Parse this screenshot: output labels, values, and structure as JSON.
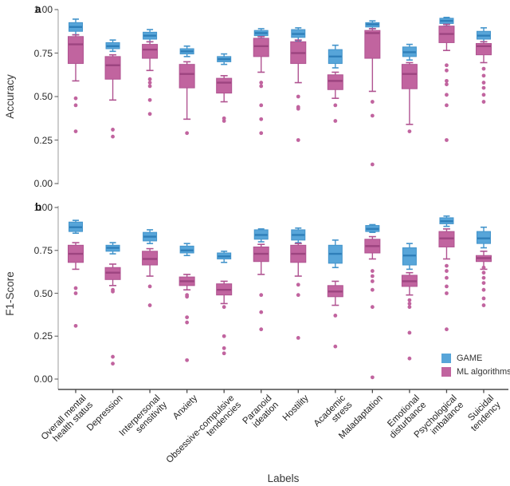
{
  "figure": {
    "xlabel": "Labels",
    "legend": {
      "position": "bottom-right-of-panel-b",
      "items": [
        {
          "label": "GAME",
          "color": "#57a5d9"
        },
        {
          "label": "ML algorithms",
          "color": "#c1649f"
        }
      ]
    }
  },
  "chart_data": [
    {
      "type": "boxplot",
      "panel_label": "a",
      "ylabel": "Accuracy",
      "ylim": [
        0,
        1
      ],
      "yticks": [
        0,
        0.25,
        0.5,
        0.75,
        1
      ],
      "ytick_labels": [
        "0.00",
        "0.25",
        "0.50",
        "0.75",
        "1.00"
      ],
      "categories": [
        "Overall mental\nhealth status",
        "Depression",
        "Interpersonal\nsensitivity",
        "Anxiety",
        "Obsessive-compulsive\ntendencies",
        "Paranoid\nideation",
        "Hostility",
        "Academic\nstress",
        "Maladaptation",
        "Emotional\ndisturbance",
        "Psychological\nimbalance",
        "Suicidal\ntendency"
      ],
      "series": [
        {
          "name": "GAME",
          "color": "#57a5d9",
          "edge": "#4394cb",
          "median_color": "#2f7fb9",
          "boxes": [
            {
              "low": 0.855,
              "q1": 0.875,
              "med": 0.9,
              "q3": 0.925,
              "high": 0.945,
              "outliers": []
            },
            {
              "low": 0.76,
              "q1": 0.775,
              "med": 0.79,
              "q3": 0.81,
              "high": 0.825,
              "outliers": []
            },
            {
              "low": 0.815,
              "q1": 0.83,
              "med": 0.85,
              "q3": 0.87,
              "high": 0.885,
              "outliers": []
            },
            {
              "low": 0.73,
              "q1": 0.745,
              "med": 0.76,
              "q3": 0.775,
              "high": 0.79,
              "outliers": []
            },
            {
              "low": 0.685,
              "q1": 0.7,
              "med": 0.715,
              "q3": 0.73,
              "high": 0.745,
              "outliers": []
            },
            {
              "low": 0.835,
              "q1": 0.85,
              "med": 0.865,
              "q3": 0.88,
              "high": 0.89,
              "outliers": []
            },
            {
              "low": 0.82,
              "q1": 0.84,
              "med": 0.86,
              "q3": 0.885,
              "high": 0.895,
              "outliers": []
            },
            {
              "low": 0.665,
              "q1": 0.69,
              "med": 0.73,
              "q3": 0.77,
              "high": 0.795,
              "outliers": []
            },
            {
              "low": 0.89,
              "q1": 0.9,
              "med": 0.915,
              "q3": 0.925,
              "high": 0.935,
              "outliers": []
            },
            {
              "low": 0.71,
              "q1": 0.73,
              "med": 0.755,
              "q3": 0.785,
              "high": 0.8,
              "outliers": []
            },
            {
              "low": 0.905,
              "q1": 0.92,
              "med": 0.935,
              "q3": 0.95,
              "high": 0.955,
              "outliers": []
            },
            {
              "low": 0.815,
              "q1": 0.83,
              "med": 0.85,
              "q3": 0.875,
              "high": 0.895,
              "outliers": []
            }
          ]
        },
        {
          "name": "ML algorithms",
          "color": "#c1649f",
          "edge": "#b05391",
          "median_color": "#9d4480",
          "boxes": [
            {
              "low": 0.59,
              "q1": 0.69,
              "med": 0.8,
              "q3": 0.845,
              "high": 0.855,
              "outliers": [
                0.49,
                0.45,
                0.3
              ]
            },
            {
              "low": 0.48,
              "q1": 0.6,
              "med": 0.68,
              "q3": 0.73,
              "high": 0.74,
              "outliers": [
                0.31,
                0.27
              ]
            },
            {
              "low": 0.65,
              "q1": 0.72,
              "med": 0.77,
              "q3": 0.8,
              "high": 0.815,
              "outliers": [
                0.6,
                0.58,
                0.56,
                0.48,
                0.4
              ]
            },
            {
              "low": 0.37,
              "q1": 0.55,
              "med": 0.63,
              "q3": 0.685,
              "high": 0.7,
              "outliers": [
                0.29
              ]
            },
            {
              "low": 0.47,
              "q1": 0.52,
              "med": 0.58,
              "q3": 0.605,
              "high": 0.62,
              "outliers": [
                0.375,
                0.36
              ]
            },
            {
              "low": 0.64,
              "q1": 0.73,
              "med": 0.79,
              "q3": 0.835,
              "high": 0.845,
              "outliers": [
                0.58,
                0.56,
                0.45,
                0.37,
                0.29
              ]
            },
            {
              "low": 0.58,
              "q1": 0.69,
              "med": 0.75,
              "q3": 0.815,
              "high": 0.825,
              "outliers": [
                0.5,
                0.44,
                0.43,
                0.25
              ]
            },
            {
              "low": 0.49,
              "q1": 0.54,
              "med": 0.59,
              "q3": 0.625,
              "high": 0.64,
              "outliers": [
                0.45,
                0.36
              ]
            },
            {
              "low": 0.53,
              "q1": 0.72,
              "med": 0.865,
              "q3": 0.88,
              "high": 0.89,
              "outliers": [
                0.47,
                0.39,
                0.11
              ]
            },
            {
              "low": 0.34,
              "q1": 0.545,
              "med": 0.63,
              "q3": 0.685,
              "high": 0.695,
              "outliers": [
                0.3
              ]
            },
            {
              "low": 0.765,
              "q1": 0.81,
              "med": 0.86,
              "q3": 0.905,
              "high": 0.915,
              "outliers": [
                0.68,
                0.65,
                0.59,
                0.57,
                0.51,
                0.45,
                0.25
              ]
            },
            {
              "low": 0.695,
              "q1": 0.74,
              "med": 0.79,
              "q3": 0.805,
              "high": 0.815,
              "outliers": [
                0.66,
                0.62,
                0.58,
                0.55,
                0.51,
                0.47
              ]
            }
          ]
        }
      ]
    },
    {
      "type": "boxplot",
      "panel_label": "b",
      "ylabel": "F1-Score",
      "ylim": [
        0,
        1
      ],
      "yticks": [
        0,
        0.25,
        0.5,
        0.75,
        1
      ],
      "ytick_labels": [
        "0.00",
        "0.25",
        "0.50",
        "0.75",
        "1.00"
      ],
      "categories": [
        "Overall mental\nhealth status",
        "Depression",
        "Interpersonal\nsensitivity",
        "Anxiety",
        "Obsessive-compulsive\ntendencies",
        "Paranoid\nideation",
        "Hostility",
        "Academic\nstress",
        "Maladaptation",
        "Emotional\ndisturbance",
        "Psychological\nimbalance",
        "Suicidal\ntendency"
      ],
      "series": [
        {
          "name": "GAME",
          "color": "#57a5d9",
          "edge": "#4394cb",
          "median_color": "#2f7fb9",
          "boxes": [
            {
              "low": 0.85,
              "q1": 0.86,
              "med": 0.885,
              "q3": 0.915,
              "high": 0.925,
              "outliers": []
            },
            {
              "low": 0.73,
              "q1": 0.745,
              "med": 0.765,
              "q3": 0.78,
              "high": 0.795,
              "outliers": []
            },
            {
              "low": 0.79,
              "q1": 0.805,
              "med": 0.83,
              "q3": 0.855,
              "high": 0.87,
              "outliers": []
            },
            {
              "low": 0.72,
              "q1": 0.735,
              "med": 0.75,
              "q3": 0.775,
              "high": 0.79,
              "outliers": []
            },
            {
              "low": 0.68,
              "q1": 0.7,
              "med": 0.715,
              "q3": 0.735,
              "high": 0.745,
              "outliers": []
            },
            {
              "low": 0.8,
              "q1": 0.815,
              "med": 0.84,
              "q3": 0.87,
              "high": 0.875,
              "outliers": []
            },
            {
              "low": 0.795,
              "q1": 0.81,
              "med": 0.84,
              "q3": 0.87,
              "high": 0.88,
              "outliers": []
            },
            {
              "low": 0.65,
              "q1": 0.675,
              "med": 0.73,
              "q3": 0.78,
              "high": 0.81,
              "outliers": []
            },
            {
              "low": 0.855,
              "q1": 0.86,
              "med": 0.875,
              "q3": 0.895,
              "high": 0.9,
              "outliers": []
            },
            {
              "low": 0.64,
              "q1": 0.665,
              "med": 0.72,
              "q3": 0.765,
              "high": 0.79,
              "outliers": []
            },
            {
              "low": 0.89,
              "q1": 0.905,
              "med": 0.92,
              "q3": 0.94,
              "high": 0.95,
              "outliers": []
            },
            {
              "low": 0.765,
              "q1": 0.79,
              "med": 0.82,
              "q3": 0.86,
              "high": 0.885,
              "outliers": []
            }
          ]
        },
        {
          "name": "ML algorithms",
          "color": "#c1649f",
          "edge": "#b05391",
          "median_color": "#9d4480",
          "boxes": [
            {
              "low": 0.64,
              "q1": 0.68,
              "med": 0.73,
              "q3": 0.78,
              "high": 0.795,
              "outliers": [
                0.53,
                0.5,
                0.31
              ]
            },
            {
              "low": 0.545,
              "q1": 0.58,
              "med": 0.62,
              "q3": 0.65,
              "high": 0.67,
              "outliers": [
                0.52,
                0.51,
                0.13,
                0.09
              ]
            },
            {
              "low": 0.6,
              "q1": 0.665,
              "med": 0.7,
              "q3": 0.745,
              "high": 0.76,
              "outliers": [
                0.54,
                0.43
              ]
            },
            {
              "low": 0.52,
              "q1": 0.545,
              "med": 0.57,
              "q3": 0.595,
              "high": 0.61,
              "outliers": [
                0.49,
                0.48,
                0.36,
                0.33,
                0.11
              ]
            },
            {
              "low": 0.44,
              "q1": 0.49,
              "med": 0.52,
              "q3": 0.555,
              "high": 0.57,
              "outliers": [
                0.42,
                0.25,
                0.18,
                0.15
              ]
            },
            {
              "low": 0.61,
              "q1": 0.685,
              "med": 0.73,
              "q3": 0.77,
              "high": 0.785,
              "outliers": [
                0.49,
                0.39,
                0.29
              ]
            },
            {
              "low": 0.6,
              "q1": 0.68,
              "med": 0.73,
              "q3": 0.78,
              "high": 0.79,
              "outliers": [
                0.55,
                0.49,
                0.24
              ]
            },
            {
              "low": 0.43,
              "q1": 0.48,
              "med": 0.51,
              "q3": 0.545,
              "high": 0.57,
              "outliers": [
                0.37,
                0.19
              ]
            },
            {
              "low": 0.7,
              "q1": 0.735,
              "med": 0.775,
              "q3": 0.815,
              "high": 0.83,
              "outliers": [
                0.63,
                0.6,
                0.57,
                0.52,
                0.42,
                0.01
              ]
            },
            {
              "low": 0.49,
              "q1": 0.54,
              "med": 0.57,
              "q3": 0.605,
              "high": 0.62,
              "outliers": [
                0.46,
                0.44,
                0.42,
                0.27,
                0.12
              ]
            },
            {
              "low": 0.7,
              "q1": 0.77,
              "med": 0.82,
              "q3": 0.86,
              "high": 0.875,
              "outliers": [
                0.66,
                0.63,
                0.59,
                0.54,
                0.5,
                0.29
              ]
            },
            {
              "low": 0.64,
              "q1": 0.685,
              "med": 0.705,
              "q3": 0.72,
              "high": 0.745,
              "outliers": [
                0.65,
                0.62,
                0.59,
                0.56,
                0.52,
                0.47,
                0.43
              ]
            }
          ]
        }
      ]
    }
  ]
}
